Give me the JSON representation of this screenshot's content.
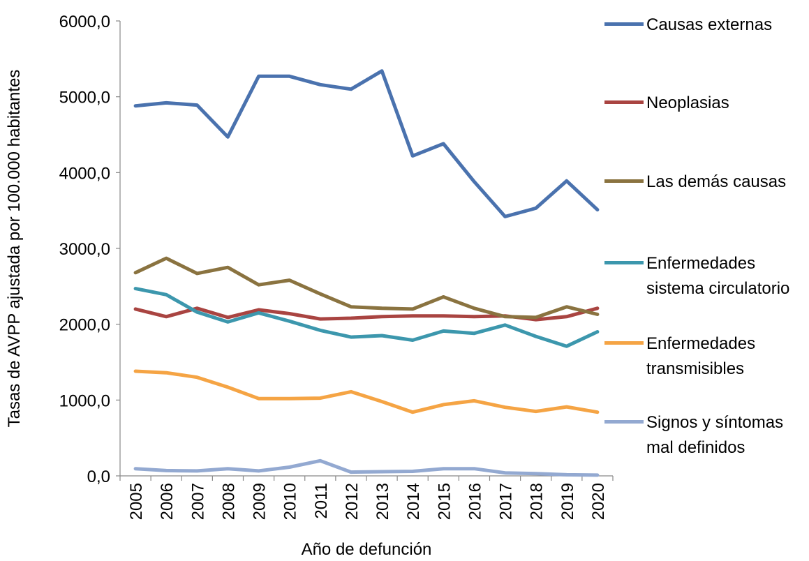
{
  "chart_data": {
    "type": "line",
    "x_label": "Año de defunción",
    "y_label": "Tasas de AVPP ajustada por 100.000 habitantes",
    "categories": [
      "2005",
      "2006",
      "2007",
      "2008",
      "2009",
      "2010",
      "2011",
      "2012",
      "2013",
      "2014",
      "2015",
      "2016",
      "2017",
      "2018",
      "2019",
      "2020"
    ],
    "series": [
      {
        "name": "Causas externas",
        "color": "#4a72ae",
        "values": [
          4880,
          4920,
          4890,
          4470,
          5270,
          5270,
          5160,
          5100,
          5340,
          4220,
          4380,
          3880,
          3420,
          3530,
          3890,
          3510
        ]
      },
      {
        "name": "Neoplasias",
        "color": "#a94441",
        "values": [
          2200,
          2100,
          2210,
          2090,
          2190,
          2140,
          2070,
          2080,
          2100,
          2110,
          2110,
          2100,
          2110,
          2060,
          2100,
          2210
        ]
      },
      {
        "name": "Las demás causas",
        "color": "#8a7340",
        "values": [
          2680,
          2870,
          2670,
          2750,
          2520,
          2580,
          2400,
          2230,
          2210,
          2200,
          2360,
          2210,
          2100,
          2090,
          2230,
          2130
        ]
      },
      {
        "name": "Enfermedades sistema circulatorio",
        "color": "#3c97ad",
        "values": [
          2470,
          2390,
          2160,
          2030,
          2150,
          2040,
          1920,
          1830,
          1850,
          1790,
          1910,
          1880,
          1990,
          1840,
          1710,
          1900
        ]
      },
      {
        "name": "Enfermedades transmisibles",
        "color": "#f5a444",
        "values": [
          1380,
          1360,
          1300,
          1170,
          1020,
          1020,
          1025,
          1110,
          980,
          840,
          940,
          990,
          905,
          850,
          910,
          840
        ]
      },
      {
        "name": "Signos y síntomas mal definidos",
        "color": "#93a9d1",
        "values": [
          95,
          70,
          65,
          95,
          65,
          115,
          200,
          50,
          55,
          60,
          95,
          95,
          40,
          30,
          15,
          10
        ]
      }
    ],
    "ylim": [
      0,
      6000
    ],
    "yticks": [
      {
        "value": 0,
        "label": "0,0"
      },
      {
        "value": 1000,
        "label": "1000,0"
      },
      {
        "value": 2000,
        "label": "2000,0"
      },
      {
        "value": 3000,
        "label": "3000,0"
      },
      {
        "value": 4000,
        "label": "4000,0"
      },
      {
        "value": 5000,
        "label": "5000,0"
      },
      {
        "value": 6000,
        "label": "6000,0"
      }
    ],
    "grid": false
  }
}
